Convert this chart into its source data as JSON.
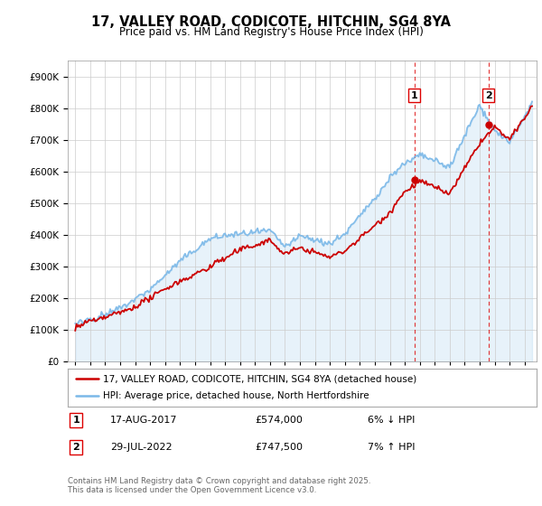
{
  "title_line1": "17, VALLEY ROAD, CODICOTE, HITCHIN, SG4 8YA",
  "title_line2": "Price paid vs. HM Land Registry's House Price Index (HPI)",
  "ylim": [
    0,
    950000
  ],
  "yticks": [
    0,
    100000,
    200000,
    300000,
    400000,
    500000,
    600000,
    700000,
    800000,
    900000
  ],
  "ytick_labels": [
    "£0",
    "£100K",
    "£200K",
    "£300K",
    "£400K",
    "£500K",
    "£600K",
    "£700K",
    "£800K",
    "£900K"
  ],
  "hpi_color": "#7ab8e8",
  "price_color": "#cc0000",
  "marker1_x": 2017.63,
  "marker1_y": 574000,
  "marker2_x": 2022.58,
  "marker2_y": 747500,
  "annotation1": [
    "1",
    "17-AUG-2017",
    "£574,000",
    "6% ↓ HPI"
  ],
  "annotation2": [
    "2",
    "29-JUL-2022",
    "£747,500",
    "7% ↑ HPI"
  ],
  "legend_line1": "17, VALLEY ROAD, CODICOTE, HITCHIN, SG4 8YA (detached house)",
  "legend_line2": "HPI: Average price, detached house, North Hertfordshire",
  "footer": "Contains HM Land Registry data © Crown copyright and database right 2025.\nThis data is licensed under the Open Government Licence v3.0.",
  "bg_color": "#ffffff",
  "grid_color": "#cccccc",
  "vline_color": "#dd0000",
  "xlim_start": 1994.5,
  "xlim_end": 2025.8
}
